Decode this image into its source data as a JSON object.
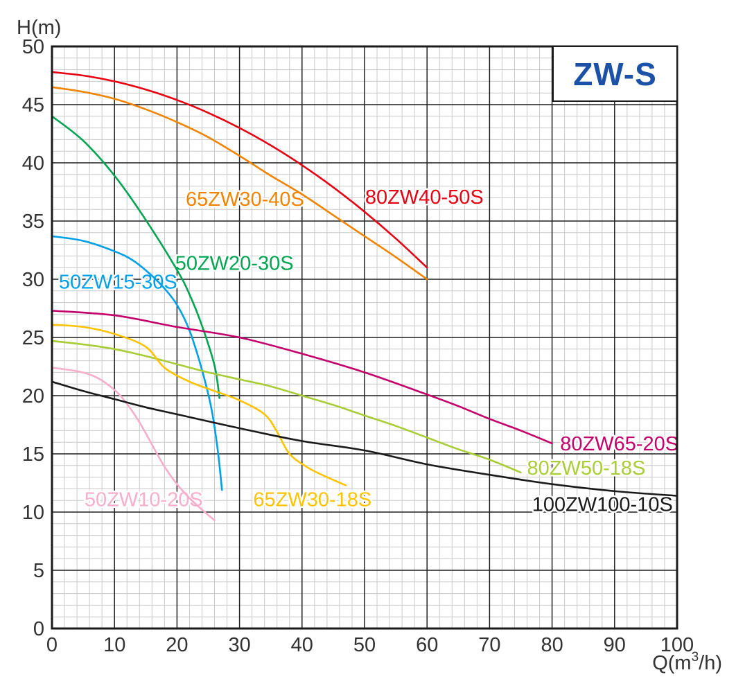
{
  "title": {
    "text": "ZW-S",
    "color": "#1b52a8"
  },
  "style": {
    "background": "#ffffff",
    "minor_grid": "#c9c9c9",
    "major_grid": "#1e1e1e",
    "axis_color": "#1a1a1a",
    "tick_color": "#333333"
  },
  "axes": {
    "y_axis": {
      "label": "H(m)",
      "ticks": [
        0,
        5,
        10,
        15,
        20,
        25,
        30,
        35,
        40,
        45,
        50
      ]
    },
    "x_axis": {
      "label_pre": "Q(m",
      "label_sup": "3",
      "label_post": "/h)",
      "ticks": [
        0,
        10,
        20,
        30,
        40,
        50,
        60,
        70,
        80,
        90,
        100
      ]
    }
  },
  "chart_data": {
    "type": "line",
    "title": "ZW-S",
    "xlabel": "Q(m3/h)",
    "ylabel": "H(m)",
    "xlim": [
      0,
      100
    ],
    "ylim": [
      0,
      50
    ],
    "grid": {
      "x_major": 10,
      "x_minor": 2,
      "y_major": 5,
      "y_minor": 1
    },
    "legend_position": "inline-labels",
    "series": [
      {
        "name": "80ZW40-50S",
        "color": "#e60012",
        "label": {
          "q": 50.1,
          "h": 36.5
        },
        "points": [
          [
            0,
            47.8
          ],
          [
            5,
            47.5
          ],
          [
            10,
            47.0
          ],
          [
            15,
            46.3
          ],
          [
            20,
            45.4
          ],
          [
            25,
            44.3
          ],
          [
            30,
            43.0
          ],
          [
            35,
            41.5
          ],
          [
            40,
            39.8
          ],
          [
            45,
            37.9
          ],
          [
            50,
            35.8
          ],
          [
            55,
            33.5
          ],
          [
            60,
            31.0
          ]
        ]
      },
      {
        "name": "65ZW30-40S",
        "color": "#f08300",
        "label": {
          "q": 21.4,
          "h": 36.3
        },
        "points": [
          [
            0,
            46.5
          ],
          [
            5,
            46.1
          ],
          [
            10,
            45.5
          ],
          [
            15,
            44.6
          ],
          [
            20,
            43.5
          ],
          [
            25,
            42.2
          ],
          [
            30,
            40.6
          ],
          [
            35,
            38.9
          ],
          [
            40,
            37.3
          ],
          [
            45,
            35.5
          ],
          [
            50,
            33.7
          ],
          [
            55,
            31.9
          ],
          [
            60,
            30.0
          ]
        ]
      },
      {
        "name": "50ZW20-30S",
        "color": "#00a551",
        "label": {
          "q": 19.7,
          "h": 30.8
        },
        "points": [
          [
            0,
            44.0
          ],
          [
            5,
            41.9
          ],
          [
            10,
            38.9
          ],
          [
            15,
            35.1
          ],
          [
            20,
            30.8
          ],
          [
            22,
            28.7
          ],
          [
            24,
            26.0
          ],
          [
            26,
            22.6
          ],
          [
            26.8,
            19.8
          ]
        ]
      },
      {
        "name": "50ZW15-30S",
        "color": "#00a0e9",
        "label": {
          "q": 1.1,
          "h": 29.2
        },
        "points": [
          [
            0,
            33.7
          ],
          [
            5,
            33.3
          ],
          [
            10,
            32.4
          ],
          [
            13,
            31.6
          ],
          [
            16,
            30.3
          ],
          [
            18,
            29.2
          ],
          [
            20,
            27.8
          ],
          [
            22,
            25.6
          ],
          [
            24,
            22.2
          ],
          [
            25.5,
            18.9
          ],
          [
            26.5,
            15.4
          ],
          [
            27.2,
            11.9
          ]
        ]
      },
      {
        "name": "80ZW65-20S",
        "color": "#c4006b",
        "label": {
          "q": 81.3,
          "h": 15.3
        },
        "points": [
          [
            0,
            27.3
          ],
          [
            10,
            26.9
          ],
          [
            20,
            25.9
          ],
          [
            30,
            25.0
          ],
          [
            40,
            23.6
          ],
          [
            50,
            22.0
          ],
          [
            60,
            20.1
          ],
          [
            65,
            19.1
          ],
          [
            70,
            18.0
          ],
          [
            75,
            17.0
          ],
          [
            80,
            15.9
          ]
        ]
      },
      {
        "name": "80ZW50-18S",
        "color": "#a9cd36",
        "label": {
          "q": 76.0,
          "h": 13.2
        },
        "points": [
          [
            0,
            24.7
          ],
          [
            5,
            24.4
          ],
          [
            10,
            24.0
          ],
          [
            15,
            23.4
          ],
          [
            20,
            22.7
          ],
          [
            25,
            22.0
          ],
          [
            30,
            21.4
          ],
          [
            35,
            20.8
          ],
          [
            40,
            20.0
          ],
          [
            45,
            19.2
          ],
          [
            50,
            18.3
          ],
          [
            55,
            17.4
          ],
          [
            60,
            16.4
          ],
          [
            65,
            15.4
          ],
          [
            70,
            14.5
          ],
          [
            75,
            13.4
          ]
        ]
      },
      {
        "name": "65ZW30-18S",
        "color": "#fdc300",
        "label": {
          "q": 32.2,
          "h": 10.5
        },
        "points": [
          [
            0,
            26.1
          ],
          [
            5,
            25.9
          ],
          [
            10,
            25.3
          ],
          [
            15,
            24.2
          ],
          [
            18,
            22.4
          ],
          [
            22,
            21.2
          ],
          [
            26,
            20.4
          ],
          [
            30,
            19.6
          ],
          [
            34,
            18.4
          ],
          [
            36,
            16.9
          ],
          [
            38,
            15.0
          ],
          [
            41,
            13.8
          ],
          [
            44,
            13.0
          ],
          [
            47,
            12.3
          ]
        ]
      },
      {
        "name": "50ZW10-20S",
        "color": "#f6aecb",
        "label": {
          "q": 5.2,
          "h": 10.5
        },
        "points": [
          [
            0,
            22.4
          ],
          [
            4,
            22.1
          ],
          [
            7,
            21.6
          ],
          [
            10,
            20.5
          ],
          [
            12,
            19.3
          ],
          [
            14,
            17.7
          ],
          [
            16,
            15.8
          ],
          [
            18,
            13.9
          ],
          [
            20,
            12.4
          ],
          [
            22,
            11.2
          ],
          [
            24,
            10.2
          ],
          [
            26,
            9.3
          ]
        ]
      },
      {
        "name": "100ZW100-10S",
        "color": "#1a1a1a",
        "label": {
          "q": 76.8,
          "h": 10.1
        },
        "points": [
          [
            0,
            21.2
          ],
          [
            5,
            20.4
          ],
          [
            10,
            19.7
          ],
          [
            15,
            19.0
          ],
          [
            20,
            18.4
          ],
          [
            30,
            17.2
          ],
          [
            40,
            16.1
          ],
          [
            50,
            15.3
          ],
          [
            60,
            14.1
          ],
          [
            70,
            13.2
          ],
          [
            80,
            12.4
          ],
          [
            90,
            11.8
          ],
          [
            100,
            11.4
          ]
        ]
      }
    ]
  }
}
